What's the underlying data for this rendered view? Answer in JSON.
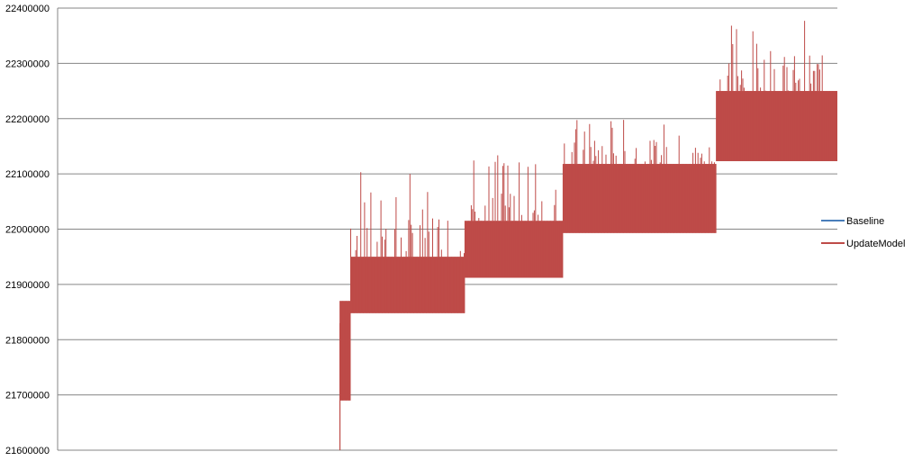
{
  "chart_data": {
    "type": "line",
    "title": "",
    "xlabel": "",
    "ylabel": "",
    "ylim": [
      21600000,
      22400000
    ],
    "y_ticks": [
      "21600000",
      "21700000",
      "21800000",
      "21900000",
      "22000000",
      "22100000",
      "22200000",
      "22300000",
      "22400000"
    ],
    "grid": true,
    "legend_position": "right",
    "colors": {
      "baseline": "#4a7ebb",
      "update_model": "#be4b48"
    },
    "series": [
      {
        "name": "Baseline",
        "note": "hidden behind UpdateModel"
      },
      {
        "name": "UpdateModel",
        "segments": [
          {
            "x_range": [
              0,
              2100
            ],
            "low": null,
            "high": null
          },
          {
            "x_range": [
              2100,
              2180
            ],
            "low": 21690000,
            "high": 21870000,
            "max": 21870000
          },
          {
            "x_range": [
              2180,
              3030
            ],
            "low": 21848000,
            "high": 21950000,
            "max": 22105000
          },
          {
            "x_range": [
              3030,
              3760
            ],
            "low": 21912000,
            "high": 22015000,
            "max": 22140000
          },
          {
            "x_range": [
              3760,
              4900
            ],
            "low": 21993000,
            "high": 22118000,
            "max": 22205000
          },
          {
            "x_range": [
              4900,
              5800
            ],
            "low": 22123000,
            "high": 22250000,
            "max": 22380000
          }
        ]
      }
    ]
  },
  "legend": {
    "baseline_label": "Baseline",
    "update_model_label": "UpdateModel"
  }
}
